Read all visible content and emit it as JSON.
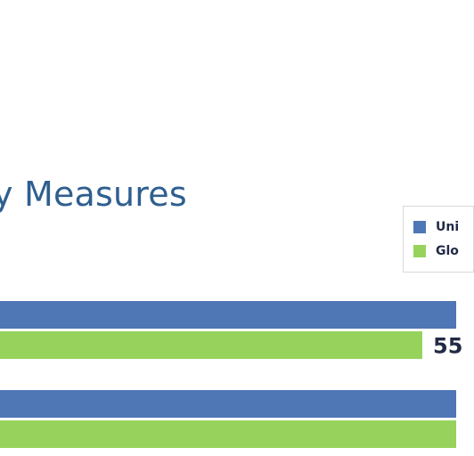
{
  "chart_data": {
    "type": "bar",
    "orientation": "horizontal",
    "title": "y Measures",
    "legend_position": "top-right",
    "series": [
      {
        "name": "Uni",
        "color": "#4f76b5",
        "values": [
          60,
          60
        ]
      },
      {
        "name": "Glo",
        "color": "#97d35c",
        "values": [
          55,
          60
        ]
      }
    ],
    "data_labels": [
      "",
      "55",
      "",
      ""
    ],
    "categories": [
      "",
      ""
    ],
    "xlim": [
      0,
      60
    ],
    "grid": false
  }
}
